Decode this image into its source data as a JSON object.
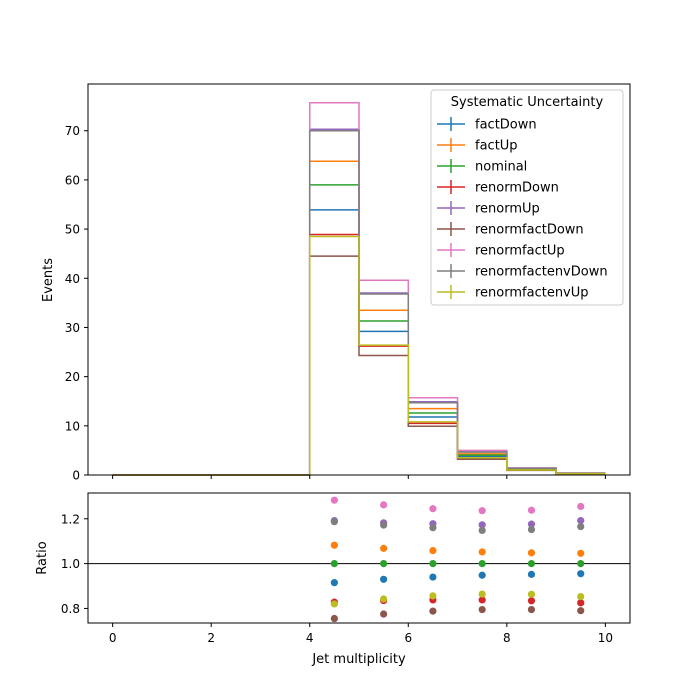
{
  "chart_data": [
    {
      "type": "line",
      "subtype": "step-histogram",
      "bin_edges": [
        0,
        1,
        2,
        3,
        4,
        5,
        6,
        7,
        8,
        9,
        10
      ],
      "ylabel": "Events",
      "xlim": [
        -0.5,
        10.5
      ],
      "ylim": [
        0,
        79.5
      ],
      "yticks": [
        0,
        10,
        20,
        30,
        40,
        50,
        60,
        70
      ],
      "grid": false,
      "legend": {
        "title": "Systematic Uncertainty",
        "placement": "top-right"
      },
      "series": [
        {
          "name": "factDown",
          "color": "#1f77b4",
          "values": [
            0,
            0,
            0,
            0,
            53.9,
            29.2,
            11.8,
            3.8,
            1.1,
            0.3
          ]
        },
        {
          "name": "factUp",
          "color": "#ff7f0e",
          "values": [
            0,
            0,
            0,
            0,
            63.8,
            33.5,
            13.5,
            4.3,
            1.25,
            0.33
          ]
        },
        {
          "name": "nominal",
          "color": "#2ca02c",
          "values": [
            0,
            0,
            0,
            0,
            59.0,
            31.3,
            12.6,
            4.05,
            1.18,
            0.32
          ]
        },
        {
          "name": "renormDown",
          "color": "#d62728",
          "values": [
            0,
            0,
            0,
            0,
            48.9,
            26.2,
            10.5,
            3.4,
            1.0,
            0.26
          ]
        },
        {
          "name": "renormUp",
          "color": "#9467bd",
          "values": [
            0,
            0,
            0,
            0,
            70.3,
            37.0,
            14.9,
            4.75,
            1.39,
            0.38
          ]
        },
        {
          "name": "renormfactDown",
          "color": "#8c564b",
          "values": [
            0,
            0,
            0,
            0,
            44.5,
            24.3,
            9.9,
            3.2,
            0.94,
            0.25
          ]
        },
        {
          "name": "renormfactUp",
          "color": "#e377c2",
          "values": [
            0,
            0,
            0,
            0,
            75.7,
            39.6,
            15.7,
            5.0,
            1.46,
            0.4
          ]
        },
        {
          "name": "renormfactenvDown",
          "color": "#7f7f7f",
          "values": [
            0,
            0,
            0,
            0,
            70.0,
            36.8,
            14.7,
            4.65,
            1.36,
            0.37
          ]
        },
        {
          "name": "renormfactenvUp",
          "color": "#bcbd22",
          "values": [
            0,
            0,
            0,
            0,
            48.5,
            26.4,
            10.8,
            3.5,
            1.02,
            0.27
          ]
        }
      ]
    },
    {
      "type": "scatter",
      "xlabel": "Jet multiplicity",
      "ylabel": "Ratio",
      "xlim": [
        -0.5,
        10.5
      ],
      "ylim": [
        0.735,
        1.315
      ],
      "xticks": [
        0,
        2,
        4,
        6,
        8,
        10
      ],
      "yticks": [
        0.8,
        1.0,
        1.2
      ],
      "reference_line": 1.0,
      "x": [
        4.5,
        5.5,
        6.5,
        7.5,
        8.5,
        9.5
      ],
      "series": [
        {
          "name": "factDown",
          "color": "#1f77b4",
          "values": [
            0.915,
            0.93,
            0.94,
            0.948,
            0.952,
            0.955
          ]
        },
        {
          "name": "factUp",
          "color": "#ff7f0e",
          "values": [
            1.082,
            1.068,
            1.058,
            1.052,
            1.048,
            1.046
          ]
        },
        {
          "name": "nominal",
          "color": "#2ca02c",
          "values": [
            1.0,
            1.0,
            1.0,
            1.0,
            1.0,
            1.0
          ]
        },
        {
          "name": "renormDown",
          "color": "#d62728",
          "values": [
            0.828,
            0.835,
            0.838,
            0.838,
            0.834,
            0.825
          ]
        },
        {
          "name": "renormUp",
          "color": "#9467bd",
          "values": [
            1.192,
            1.182,
            1.178,
            1.173,
            1.176,
            1.192
          ]
        },
        {
          "name": "renormfactDown",
          "color": "#8c564b",
          "values": [
            0.755,
            0.775,
            0.788,
            0.795,
            0.795,
            0.79
          ]
        },
        {
          "name": "renormfactUp",
          "color": "#e377c2",
          "values": [
            1.283,
            1.262,
            1.245,
            1.236,
            1.238,
            1.255
          ]
        },
        {
          "name": "renormfactenvDown",
          "color": "#7f7f7f",
          "values": [
            1.187,
            1.172,
            1.16,
            1.148,
            1.152,
            1.165
          ]
        },
        {
          "name": "renormfactenvUp",
          "color": "#bcbd22",
          "values": [
            0.82,
            0.842,
            0.856,
            0.864,
            0.863,
            0.853
          ]
        }
      ]
    }
  ]
}
